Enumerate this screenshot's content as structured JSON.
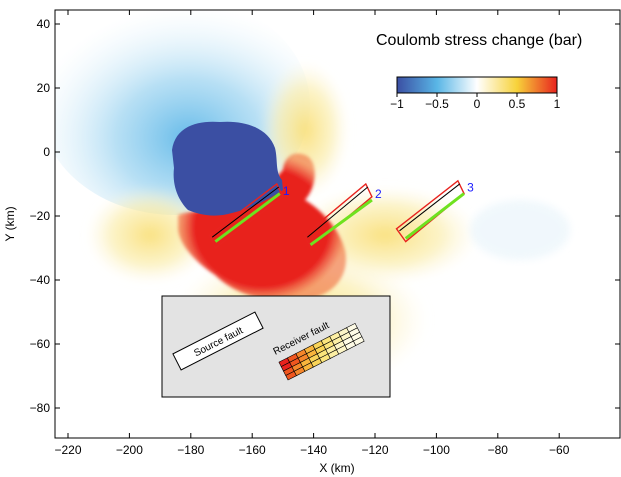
{
  "chart_data": {
    "type": "heatmap",
    "title": "Coulomb stress change (bar)",
    "xlabel": "X (km)",
    "ylabel": "Y (km)",
    "xlim": [
      -225,
      -45
    ],
    "ylim": [
      -90,
      45
    ],
    "xticks": [
      -220,
      -200,
      -180,
      -160,
      -140,
      -120,
      -100,
      -80,
      -60
    ],
    "yticks": [
      -80,
      -60,
      -40,
      -20,
      0,
      20,
      40
    ],
    "colorbar": {
      "range": [
        -1,
        1
      ],
      "ticks": [
        -1,
        -0.5,
        0,
        0.5,
        1
      ],
      "tick_labels": [
        "−1",
        "−0.5",
        "0",
        "0.5",
        "1"
      ],
      "colors": [
        "#3b4fa3",
        "#59b6e6",
        "#ffffff",
        "#f7d23a",
        "#e8231f"
      ]
    },
    "source_fault": {
      "corners": [
        [
          -174,
          -26
        ],
        [
          -152,
          -10
        ],
        [
          -150,
          -14
        ],
        [
          -172,
          -30
        ]
      ],
      "green_edge": [
        [
          -173,
          -27
        ],
        [
          -151,
          -13
        ]
      ]
    },
    "receiver_faults": [
      {
        "label": "1",
        "corners": [
          [
            -174,
            -26
          ],
          [
            -152,
            -10
          ],
          [
            -150,
            -14
          ],
          [
            -172,
            -30
          ]
        ],
        "green_edge": [
          [
            -172,
            -28
          ],
          [
            -151,
            -13
          ]
        ],
        "label_pos": [
          -150,
          -14
        ]
      },
      {
        "label": "2",
        "corners": [
          [
            -143,
            -26
          ],
          [
            -123,
            -10
          ],
          [
            -121,
            -14
          ],
          [
            -141,
            -30
          ]
        ],
        "green_edge": [
          [
            -141,
            -29
          ],
          [
            -121,
            -15
          ]
        ],
        "label_pos": [
          -120,
          -15
        ]
      },
      {
        "label": "3",
        "corners": [
          [
            -113,
            -24
          ],
          [
            -93,
            -9
          ],
          [
            -91,
            -13
          ],
          [
            -110,
            -28
          ]
        ],
        "green_edge": [
          [
            -110,
            -27
          ],
          [
            -91,
            -13
          ]
        ],
        "label_pos": [
          -90,
          -13
        ]
      }
    ],
    "inset": {
      "source_label": "Source fault",
      "receiver_label": "Receiver fault"
    }
  }
}
